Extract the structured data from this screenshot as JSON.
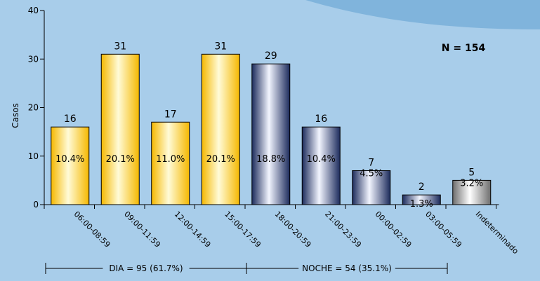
{
  "chart_data": {
    "type": "bar",
    "ylabel": "Casos",
    "ylim": [
      0,
      40
    ],
    "yticks": [
      0,
      10,
      20,
      30,
      40
    ],
    "annotation": "N = 154",
    "categories": [
      "06:00-08:59",
      "09:00-11:59",
      "12:00-14:59",
      "15:00-17:59",
      "18:00-20:59",
      "21:00-23:59",
      "00:00-02:59",
      "03:00-05:59",
      "Indeterminado"
    ],
    "values": [
      16,
      31,
      17,
      31,
      29,
      16,
      7,
      2,
      5
    ],
    "percent_labels": [
      "10.4%",
      "20.1%",
      "11.0%",
      "20.1%",
      "18.8%",
      "10.4%",
      "4.5%",
      "1.3%",
      "3.2%"
    ],
    "bar_groups": [
      "dia",
      "dia",
      "dia",
      "dia",
      "noche",
      "noche",
      "noche",
      "noche",
      "indeterminado"
    ],
    "groups": [
      {
        "key": "dia",
        "label": "DIA = 95 (61.7%)",
        "from_index": 0,
        "to_index": 3
      },
      {
        "key": "noche",
        "label": "NOCHE = 54 (35.1%)",
        "from_index": 4,
        "to_index": 7
      }
    ],
    "colors": {
      "dia": [
        "#f5b800",
        "#fffbd8",
        "#f5b800"
      ],
      "noche": [
        "#1c2b5c",
        "#f2f5ff",
        "#1c2b5c"
      ],
      "indeterminado": [
        "#6e6e6e",
        "#ffffff",
        "#6e6e6e"
      ],
      "background": "#a8cdea"
    },
    "grid": false
  }
}
